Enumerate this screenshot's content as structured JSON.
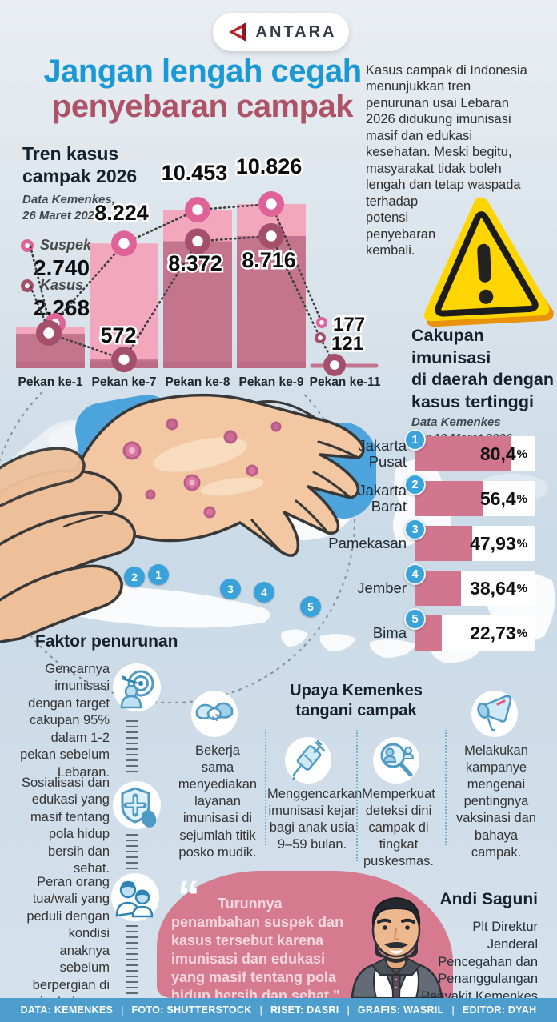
{
  "brand": {
    "name": "ANTARA"
  },
  "title": {
    "line1": "Jangan lengah cegah",
    "line2": "penyebaran campak"
  },
  "intro": "Kasus campak di Indonesia\nmenunjukkan tren\npenurunan usai Lebaran\n2026 didukung imunisasi\nmasif dan edukasi\nkesehatan. Meski begitu,\nmasyarakat tidak boleh\nlengah dan tetap waspada\nterhadap\npotensi\npenyebaran\nkembali.",
  "chart_data": [
    {
      "type": "bar",
      "title": "Tren kasus\ncampak 2026",
      "source": "Data Kemenkes,\n26 Maret 2026",
      "categories": [
        "Pekan ke-1",
        "Pekan ke-7",
        "Pekan ke-8",
        "Pekan ke-9",
        "Pekan ke-11"
      ],
      "series": [
        {
          "name": "Suspek",
          "values": [
            2740,
            8224,
            10453,
            10826,
            177
          ],
          "labels": [
            "2.740",
            "8.224",
            "10.453",
            "10.826",
            "177"
          ],
          "bar_color": "#f3a7bc",
          "marker_color": "#df6398"
        },
        {
          "name": "Kasus",
          "values": [
            2268,
            572,
            8372,
            8716,
            121
          ],
          "labels": [
            "2.268",
            "572",
            "8.372",
            "8.716",
            "121"
          ],
          "bar_color": "#c4758e",
          "marker_color": "#a44f6b"
        }
      ],
      "ylim": [
        0,
        10826
      ],
      "legend_position": "left"
    },
    {
      "type": "bar",
      "title": "Cakupan\nimunisasi\ndi daerah dengan\nkasus tertinggi",
      "source": "Data Kemenkes\nper 12 Maret 2026",
      "categories": [
        "Jakarta Pusat",
        "Jakarta Barat",
        "Pamekasan",
        "Jember",
        "Bima"
      ],
      "ranks": [
        "1",
        "2",
        "3",
        "4",
        "5"
      ],
      "values": [
        80.4,
        56.4,
        47.93,
        38.64,
        22.73
      ],
      "labels": [
        "80,4",
        "56,4",
        "47,93",
        "38,64",
        "22,73"
      ],
      "unit": "%",
      "xlim": [
        0,
        100
      ],
      "bar_color": "#d2758e"
    }
  ],
  "map": {
    "pins": [
      "1",
      "2",
      "3",
      "4",
      "5"
    ]
  },
  "faktor": {
    "heading": "Faktor penurunan",
    "items": [
      {
        "icon": "target-icon",
        "text": "Gencarnya\nimunisasi\ndengan target\ncakupan 95%\ndalam 1-2\npekan sebelum\nLebaran."
      },
      {
        "icon": "health-shield-icon",
        "text": "Sosialisasi dan\nedukasi yang\nmasif tentang\npola hidup\nbersih dan\nsehat."
      },
      {
        "icon": "family-icon",
        "text": "Peran orang\ntua/wali yang\npeduli dengan\nkondisi\nanaknya\nsebelum\nberpergian di\nmusim Lebaran."
      }
    ]
  },
  "upaya": {
    "heading": "Upaya Kemenkes\ntangani campak",
    "items": [
      {
        "icon": "handshake-icon",
        "text": "Bekerja sama\nmenyediakan\nlayanan\nimunisasi di\nsejumlah titik\nposko mudik."
      },
      {
        "icon": "syringe-icon",
        "text": "Menggencarkan\nimunisasi kejar\nbagi anak usia\n9–59 bulan."
      },
      {
        "icon": "magnifier-people-icon",
        "text": "Memperkuat\ndeteksi dini\ncampak di\ntingkat\npuskesmas."
      },
      {
        "icon": "megaphone-icon",
        "text": "Melakukan\nkampanye\nmengenai\npentingnya\nvaksinasi dan\nbahaya\ncampak."
      }
    ]
  },
  "quote": {
    "mark": "“",
    "text": "Turunnya\npenambahan suspek dan\nkasus tersebut karena\nimunisasi dan edukasi\nyang masif tentang pola\nhidup bersih dan sehat.\"",
    "person": "Andi Saguni",
    "role": "Plt Direktur\nJenderal\nPencegahan dan\nPenanggulangan\nPenyakit Kemenkes"
  },
  "footer": {
    "separator": "|",
    "credits": [
      "DATA: KEMENKES",
      "FOTO: SHUTTERSTOCK",
      "RISET: DASRI",
      "GRAFIS: WASRIL",
      "EDITOR: DYAH"
    ]
  },
  "colors": {
    "title_blue": "#1a99d4",
    "title_rose": "#ae5267",
    "suspek_bar": "#f3a7bc",
    "kasus_bar": "#c4758e",
    "suspek_marker": "#df6398",
    "kasus_marker": "#a44f6b",
    "badge_blue": "#3aa3da",
    "coverage_bar": "#d2758e",
    "quote_blob": "#d67b8f",
    "footer_bar": "#4d9ecd",
    "warning_yellow": "#ffd500"
  }
}
